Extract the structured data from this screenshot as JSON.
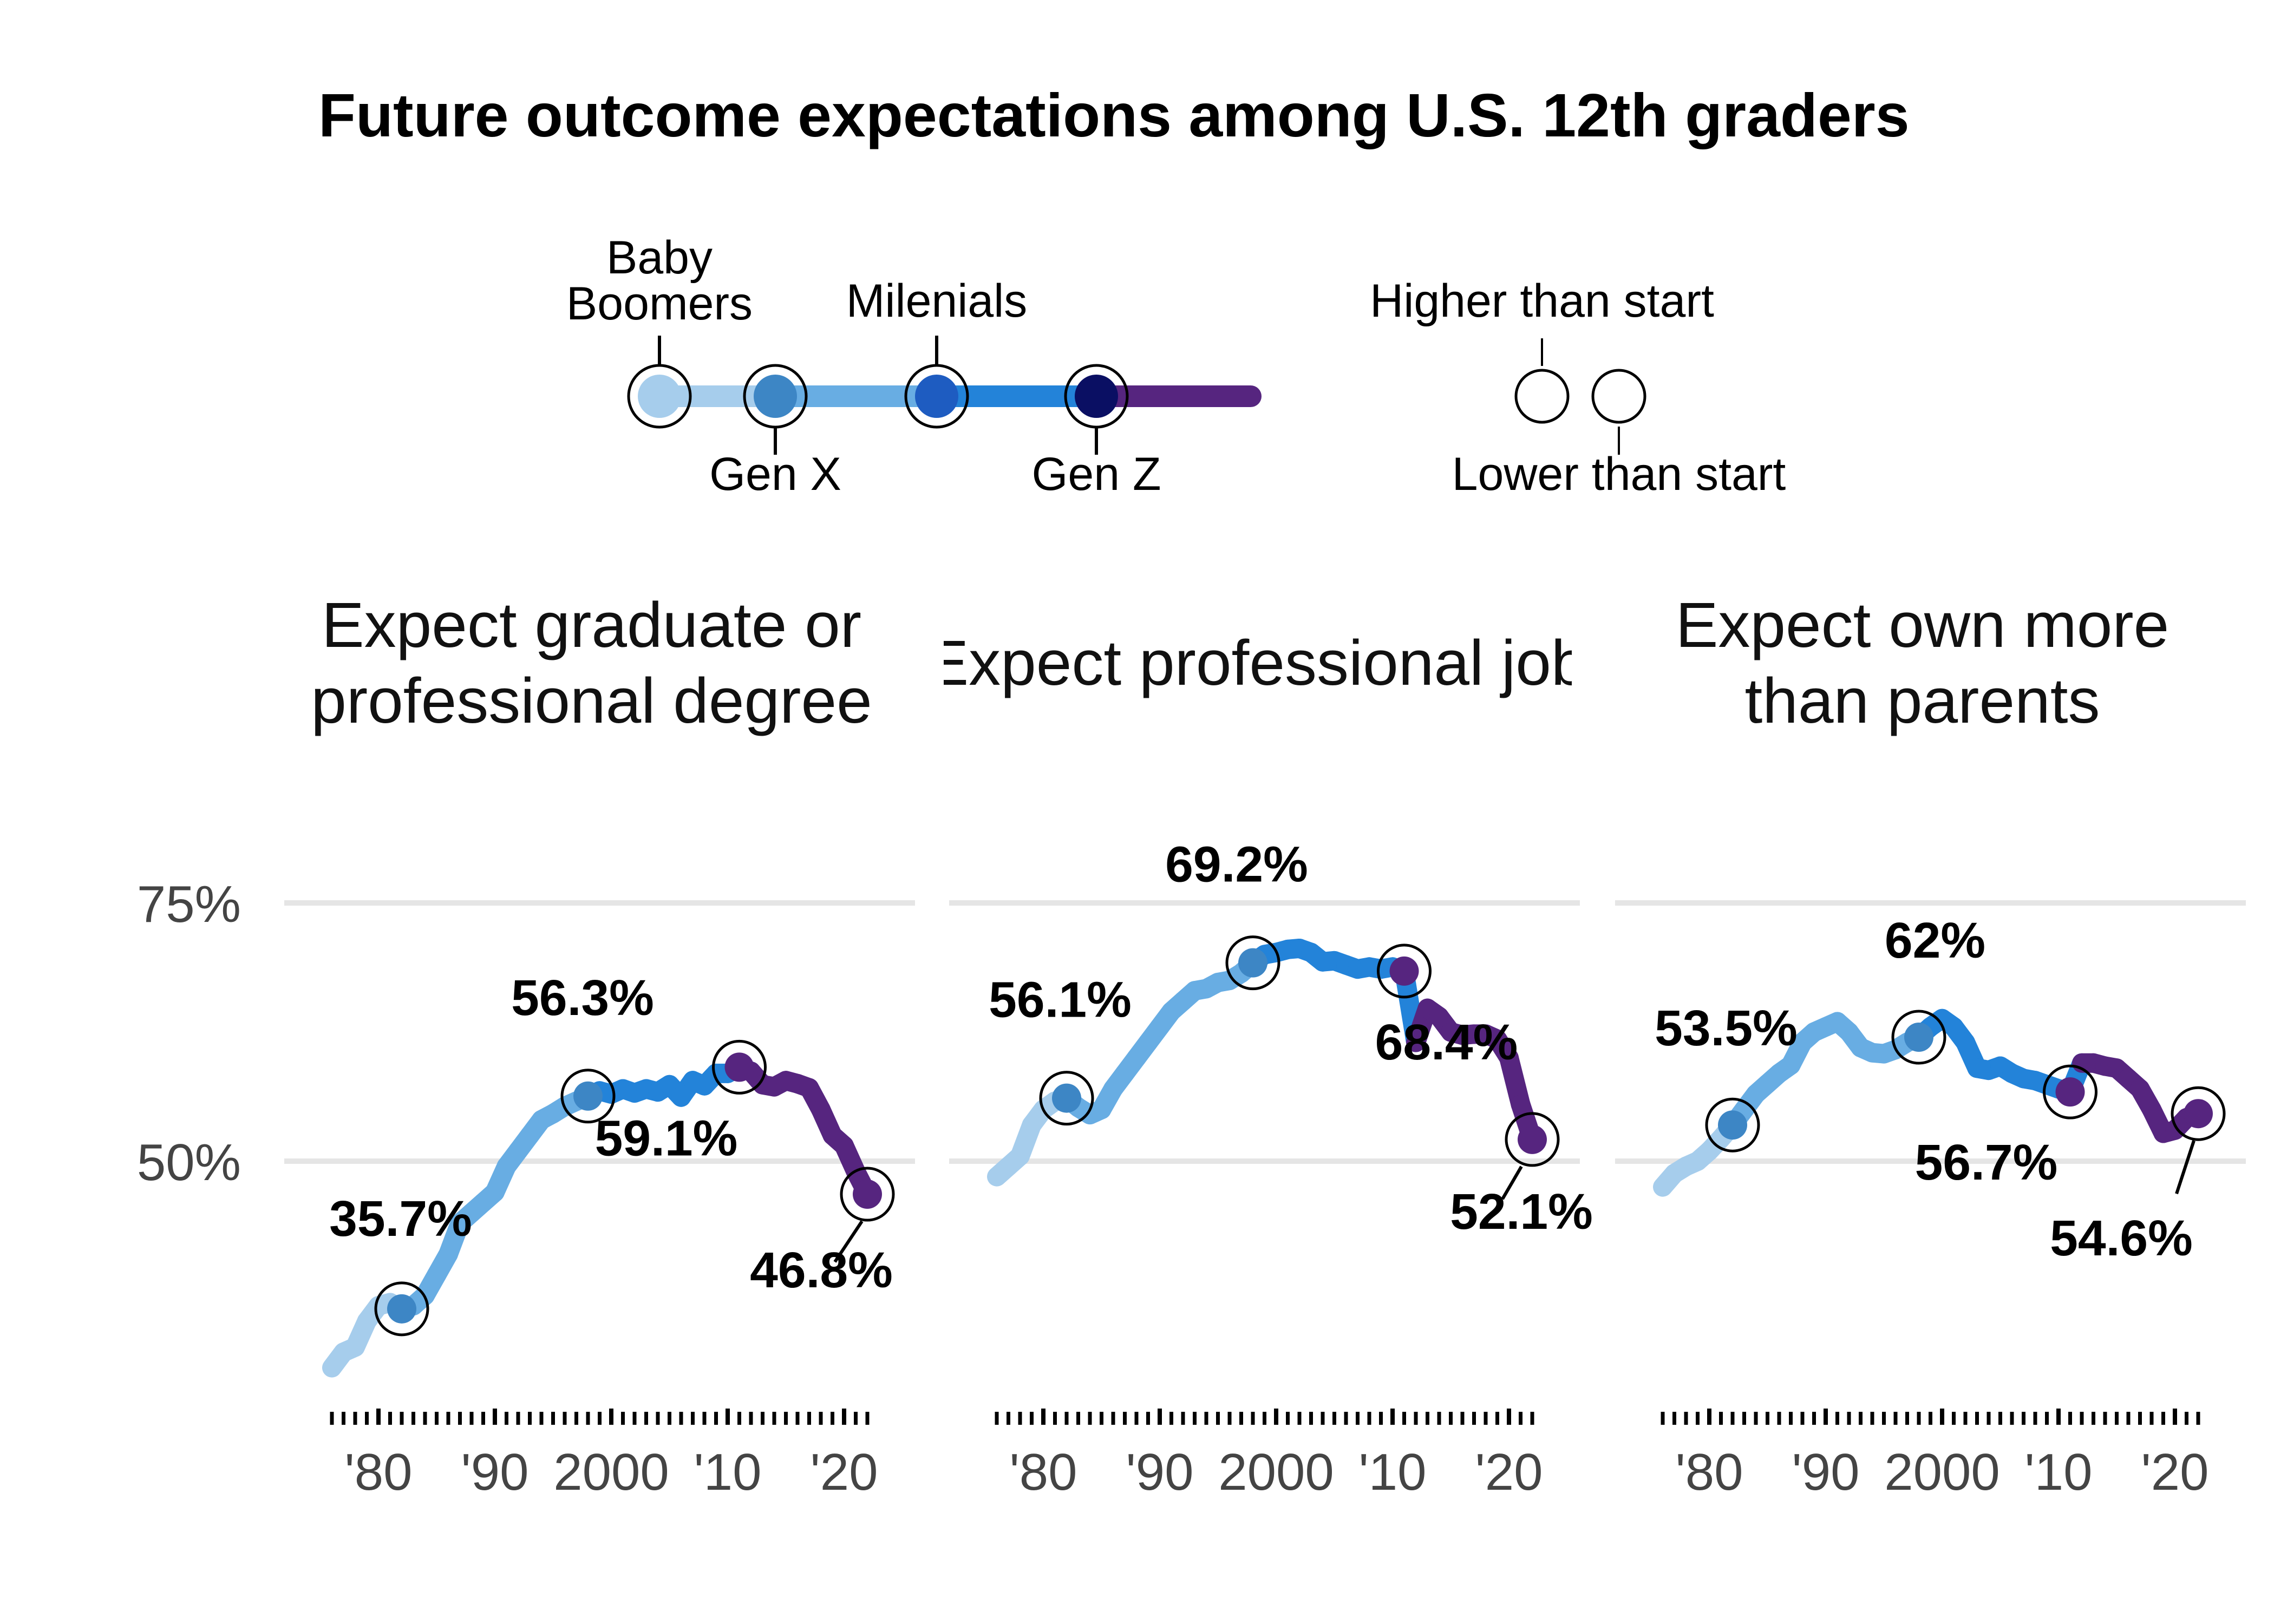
{
  "chart_data": {
    "type": "line",
    "title": "Future outcome expectations among U.S. 12th graders",
    "legend": {
      "generations": [
        {
          "name": "Baby Boomers",
          "color": "#a6cdec"
        },
        {
          "name": "Gen X",
          "color": "#68ade3"
        },
        {
          "name": "Milenials",
          "color": "#2383d9"
        },
        {
          "name": "Gen Z",
          "color": "#56257f"
        }
      ],
      "markers": [
        "Higher than start",
        "Lower than start"
      ],
      "dot_colors": [
        "#a6cdec",
        "#3d86c5",
        "#1e5cc1",
        "#0a0f63"
      ]
    },
    "y_ticks": [
      "75%",
      "50%"
    ],
    "x_ticks": [
      "'80",
      "'90",
      "2000",
      "'10",
      "'20"
    ],
    "ylim": [
      27,
      80
    ],
    "xlim": [
      1974,
      2024
    ],
    "panels": [
      {
        "title_lines": [
          "Expect graduate or",
          "professional degree"
        ],
        "points": [
          [
            1976,
            30
          ],
          [
            1977,
            31.5
          ],
          [
            1978,
            32
          ],
          [
            1979,
            34.5
          ],
          [
            1980,
            36
          ],
          [
            1981,
            36.3
          ],
          [
            1982,
            35.7
          ],
          [
            1983,
            36
          ],
          [
            1984,
            37
          ],
          [
            1985,
            39
          ],
          [
            1986,
            41
          ],
          [
            1987,
            44
          ],
          [
            1988,
            45
          ],
          [
            1989,
            46
          ],
          [
            1990,
            47
          ],
          [
            1991,
            49.5
          ],
          [
            1992,
            51
          ],
          [
            1993,
            52.5
          ],
          [
            1994,
            54
          ],
          [
            1995,
            54.6
          ],
          [
            1996,
            55.3
          ],
          [
            1997,
            55.8
          ],
          [
            1998,
            56.3
          ],
          [
            1999,
            56.8
          ],
          [
            2000,
            56.5
          ],
          [
            2001,
            57
          ],
          [
            2002,
            56.6
          ],
          [
            2003,
            57
          ],
          [
            2004,
            56.7
          ],
          [
            2005,
            57.4
          ],
          [
            2006,
            56.2
          ],
          [
            2007,
            57.8
          ],
          [
            2008,
            57.3
          ],
          [
            2009,
            58.5
          ],
          [
            2010,
            58.5
          ],
          [
            2011,
            59.1
          ],
          [
            2012,
            58.7
          ],
          [
            2013,
            57.4
          ],
          [
            2014,
            57.2
          ],
          [
            2015,
            57.8
          ],
          [
            2016,
            57.5
          ],
          [
            2017,
            57.1
          ],
          [
            2018,
            55
          ],
          [
            2019,
            52.5
          ],
          [
            2020,
            51.5
          ],
          [
            2021,
            49
          ],
          [
            2022,
            46.8
          ]
        ],
        "callouts": [
          {
            "year": 1982,
            "value": 35.7,
            "label": "35.7%"
          },
          {
            "year": 1998,
            "value": 56.3,
            "label": "56.3%"
          },
          {
            "year": 2011,
            "value": 59.1,
            "label": "59.1%"
          },
          {
            "year": 2022,
            "value": 46.8,
            "label": "46.8%"
          }
        ]
      },
      {
        "title_lines": [
          "Expect professional job"
        ],
        "points": [
          [
            1976,
            48.5
          ],
          [
            1977,
            49.5
          ],
          [
            1978,
            50.5
          ],
          [
            1979,
            53.5
          ],
          [
            1980,
            55
          ],
          [
            1981,
            55.8
          ],
          [
            1982,
            56.1
          ],
          [
            1983,
            55.2
          ],
          [
            1984,
            54.5
          ],
          [
            1985,
            55
          ],
          [
            1986,
            57
          ],
          [
            1987,
            58.5
          ],
          [
            1988,
            60
          ],
          [
            1989,
            61.5
          ],
          [
            1990,
            63
          ],
          [
            1991,
            64.5
          ],
          [
            1992,
            65.5
          ],
          [
            1993,
            66.5
          ],
          [
            1994,
            66.7
          ],
          [
            1995,
            67.3
          ],
          [
            1996,
            67.5
          ],
          [
            1997,
            68.2
          ],
          [
            1998,
            69.2
          ],
          [
            1999,
            70
          ],
          [
            2000,
            70.2
          ],
          [
            2001,
            70.5
          ],
          [
            2002,
            70.6
          ],
          [
            2003,
            70.2
          ],
          [
            2004,
            69.3
          ],
          [
            2005,
            69.4
          ],
          [
            2006,
            69
          ],
          [
            2007,
            68.6
          ],
          [
            2008,
            68.8
          ],
          [
            2009,
            68.6
          ],
          [
            2010,
            68.8
          ],
          [
            2011,
            68.4
          ],
          [
            2012,
            61.5
          ],
          [
            2013,
            64.8
          ],
          [
            2014,
            64
          ],
          [
            2015,
            62.5
          ],
          [
            2016,
            62.2
          ],
          [
            2017,
            62.3
          ],
          [
            2018,
            62.3
          ],
          [
            2019,
            61.8
          ],
          [
            2020,
            60
          ],
          [
            2021,
            55.5
          ],
          [
            2022,
            52.1
          ]
        ],
        "callouts": [
          {
            "year": 1982,
            "value": 56.1,
            "label": "56.1%"
          },
          {
            "year": 1998,
            "value": 69.2,
            "label": "69.2%"
          },
          {
            "year": 2011,
            "value": 68.4,
            "label": "68.4%"
          },
          {
            "year": 2022,
            "value": 52.1,
            "label": "52.1%"
          }
        ]
      },
      {
        "title_lines": [
          "Expect own more",
          "than parents"
        ],
        "points": [
          [
            1976,
            47.5
          ],
          [
            1977,
            48.8
          ],
          [
            1978,
            49.5
          ],
          [
            1979,
            50
          ],
          [
            1980,
            51
          ],
          [
            1981,
            52.2
          ],
          [
            1982,
            53.5
          ],
          [
            1983,
            55
          ],
          [
            1984,
            56.5
          ],
          [
            1985,
            57.5
          ],
          [
            1986,
            58.5
          ],
          [
            1987,
            59.3
          ],
          [
            1988,
            61.5
          ],
          [
            1989,
            62.5
          ],
          [
            1990,
            63
          ],
          [
            1991,
            63.5
          ],
          [
            1992,
            62.5
          ],
          [
            1993,
            61
          ],
          [
            1994,
            60.5
          ],
          [
            1995,
            60.4
          ],
          [
            1996,
            60.8
          ],
          [
            1997,
            61.5
          ],
          [
            1998,
            62
          ],
          [
            1999,
            63
          ],
          [
            2000,
            63.8
          ],
          [
            2001,
            63
          ],
          [
            2002,
            61.5
          ],
          [
            2003,
            59
          ],
          [
            2004,
            58.8
          ],
          [
            2005,
            59.2
          ],
          [
            2006,
            58.5
          ],
          [
            2007,
            58
          ],
          [
            2008,
            57.8
          ],
          [
            2009,
            57.4
          ],
          [
            2010,
            57
          ],
          [
            2011,
            56.7
          ],
          [
            2012,
            59.5
          ],
          [
            2013,
            59.5
          ],
          [
            2014,
            59.2
          ],
          [
            2015,
            59
          ],
          [
            2016,
            58
          ],
          [
            2017,
            57
          ],
          [
            2018,
            55
          ],
          [
            2019,
            52.7
          ],
          [
            2020,
            53
          ],
          [
            2021,
            54.2
          ],
          [
            2022,
            54.6
          ]
        ],
        "callouts": [
          {
            "year": 1982,
            "value": 53.5,
            "label": "53.5%"
          },
          {
            "year": 1998,
            "value": 62,
            "label": "62%"
          },
          {
            "year": 2011,
            "value": 56.7,
            "label": "56.7%"
          },
          {
            "year": 2022,
            "value": 54.6,
            "label": "54.6%"
          }
        ]
      }
    ]
  }
}
